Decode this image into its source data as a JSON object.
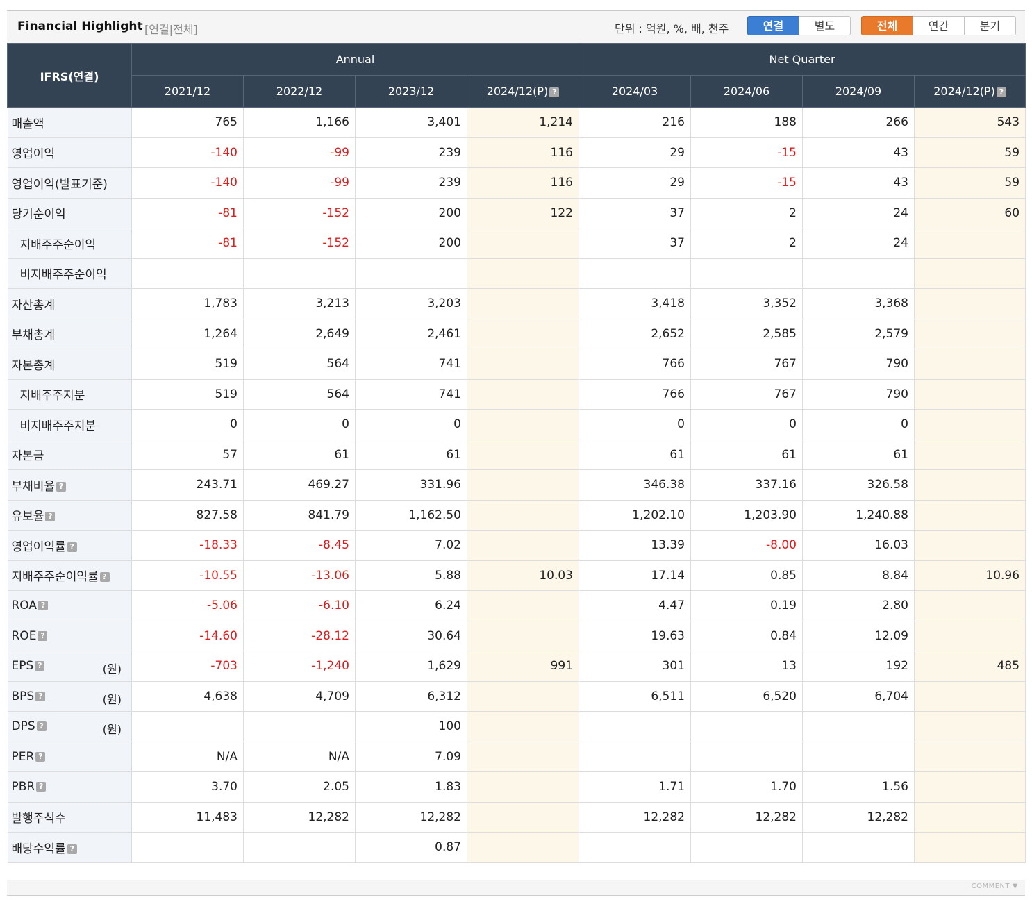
{
  "header": {
    "title": "Financial Highlight",
    "subtitle": "[연결|전체]",
    "unit": "단위 : 억원, %, 배, 천주",
    "consolidation_tabs": [
      {
        "label": "연결",
        "active": true
      },
      {
        "label": "별도",
        "active": false
      }
    ],
    "period_tabs": [
      {
        "label": "전체",
        "active": true
      },
      {
        "label": "연간",
        "active": false
      },
      {
        "label": "분기",
        "active": false
      }
    ]
  },
  "table": {
    "corner": "IFRS(연결)",
    "groups": [
      "Annual",
      "Net Quarter"
    ],
    "periods": [
      "2021/12",
      "2022/12",
      "2023/12",
      "2024/12(P)",
      "2024/03",
      "2024/06",
      "2024/09",
      "2024/12(P)"
    ],
    "rows": [
      {
        "label": "매출액",
        "values": [
          "765",
          "1,166",
          "3,401",
          "1,214",
          "216",
          "188",
          "266",
          "543"
        ]
      },
      {
        "label": "영업이익",
        "values": [
          "-140",
          "-99",
          "239",
          "116",
          "29",
          "-15",
          "43",
          "59"
        ]
      },
      {
        "label": "영업이익(발표기준)",
        "values": [
          "-140",
          "-99",
          "239",
          "116",
          "29",
          "-15",
          "43",
          "59"
        ]
      },
      {
        "label": "당기순이익",
        "values": [
          "-81",
          "-152",
          "200",
          "122",
          "37",
          "2",
          "24",
          "60"
        ]
      },
      {
        "label": "지배주주순이익",
        "values": [
          "-81",
          "-152",
          "200",
          "",
          "37",
          "2",
          "24",
          ""
        ]
      },
      {
        "label": "비지배주주순이익",
        "values": [
          "",
          "",
          "",
          "",
          "",
          "",
          "",
          ""
        ]
      },
      {
        "label": "자산총계",
        "values": [
          "1,783",
          "3,213",
          "3,203",
          "",
          "3,418",
          "3,352",
          "3,368",
          ""
        ]
      },
      {
        "label": "부채총계",
        "values": [
          "1,264",
          "2,649",
          "2,461",
          "",
          "2,652",
          "2,585",
          "2,579",
          ""
        ]
      },
      {
        "label": "자본총계",
        "values": [
          "519",
          "564",
          "741",
          "",
          "766",
          "767",
          "790",
          ""
        ]
      },
      {
        "label": "지배주주지분",
        "values": [
          "519",
          "564",
          "741",
          "",
          "766",
          "767",
          "790",
          ""
        ]
      },
      {
        "label": "비지배주주지분",
        "values": [
          "0",
          "0",
          "0",
          "",
          "0",
          "0",
          "0",
          ""
        ]
      },
      {
        "label": "자본금",
        "values": [
          "57",
          "61",
          "61",
          "",
          "61",
          "61",
          "61",
          ""
        ]
      },
      {
        "label": "부채비율",
        "values": [
          "243.71",
          "469.27",
          "331.96",
          "",
          "346.38",
          "337.16",
          "326.58",
          ""
        ]
      },
      {
        "label": "유보율",
        "values": [
          "827.58",
          "841.79",
          "1,162.50",
          "",
          "1,202.10",
          "1,203.90",
          "1,240.88",
          ""
        ]
      },
      {
        "label": "영업이익률",
        "values": [
          "-18.33",
          "-8.45",
          "7.02",
          "",
          "13.39",
          "-8.00",
          "16.03",
          ""
        ]
      },
      {
        "label": "지배주주순이익률",
        "values": [
          "-10.55",
          "-13.06",
          "5.88",
          "10.03",
          "17.14",
          "0.85",
          "8.84",
          "10.96"
        ]
      },
      {
        "label": "ROA",
        "values": [
          "-5.06",
          "-6.10",
          "6.24",
          "",
          "4.47",
          "0.19",
          "2.80",
          ""
        ]
      },
      {
        "label": "ROE",
        "values": [
          "-14.60",
          "-28.12",
          "30.64",
          "",
          "19.63",
          "0.84",
          "12.09",
          ""
        ]
      },
      {
        "label": "EPS",
        "unit": "(원)",
        "values": [
          "-703",
          "-1,240",
          "1,629",
          "991",
          "301",
          "13",
          "192",
          "485"
        ]
      },
      {
        "label": "BPS",
        "unit": "(원)",
        "values": [
          "4,638",
          "4,709",
          "6,312",
          "",
          "6,511",
          "6,520",
          "6,704",
          ""
        ]
      },
      {
        "label": "DPS",
        "unit": "(원)",
        "values": [
          "",
          "",
          "100",
          "",
          "",
          "",
          "",
          ""
        ]
      },
      {
        "label": "PER",
        "values": [
          "N/A",
          "N/A",
          "7.09",
          "",
          "",
          "",
          "",
          ""
        ]
      },
      {
        "label": "PBR",
        "values": [
          "3.70",
          "2.05",
          "1.83",
          "",
          "1.71",
          "1.70",
          "1.56",
          ""
        ]
      },
      {
        "label": "발행주식수",
        "values": [
          "11,483",
          "12,282",
          "12,282",
          "",
          "12,282",
          "12,282",
          "12,282",
          ""
        ]
      },
      {
        "label": "배당수익률",
        "values": [
          "",
          "",
          "0.87",
          "",
          "",
          "",
          "",
          ""
        ]
      }
    ]
  },
  "footer": {
    "comment_label": "COMMENT ▼"
  },
  "colors": {
    "header_bg": "#334353",
    "label_bg": "#f1f4f9",
    "projected_bg": "#fdf7ea",
    "negative": "#e01b1b",
    "active_blue": "#3b7fd4",
    "active_orange": "#e97a2b"
  }
}
